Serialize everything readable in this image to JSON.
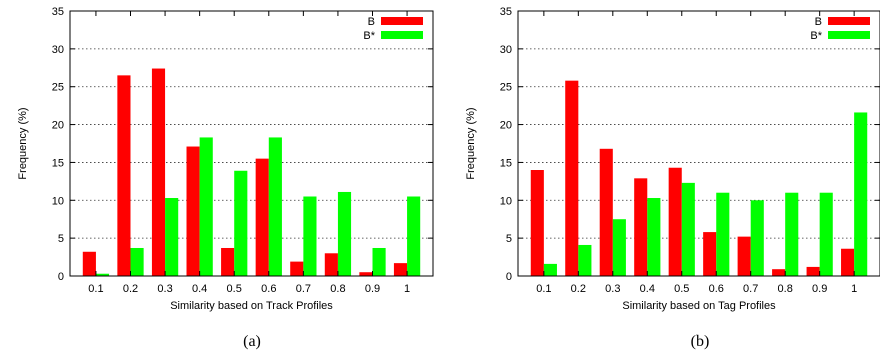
{
  "colors": {
    "B": "#ff0000",
    "B_star": "#00ff00"
  },
  "chart_data": [
    {
      "type": "bar",
      "panel_label": "(a)",
      "xlabel": "Similarity based on Track Profiles",
      "ylabel": "Frequency (%)",
      "ylim": [
        0,
        35
      ],
      "yticks": [
        0,
        5,
        10,
        15,
        20,
        25,
        30,
        35
      ],
      "grid": "horizontal dotted",
      "legend_position": "top-right",
      "categories": [
        "0.1",
        "0.2",
        "0.3",
        "0.4",
        "0.5",
        "0.6",
        "0.7",
        "0.8",
        "0.9",
        "1"
      ],
      "series": [
        {
          "name": "B",
          "color": "#ff0000",
          "values": [
            3.2,
            26.5,
            27.4,
            17.1,
            3.7,
            15.5,
            1.9,
            3.0,
            0.5,
            1.7
          ]
        },
        {
          "name": "B*",
          "color": "#00ff00",
          "values": [
            0.3,
            3.7,
            10.3,
            18.3,
            13.9,
            18.3,
            10.5,
            11.1,
            3.7,
            10.5
          ]
        }
      ]
    },
    {
      "type": "bar",
      "panel_label": "(b)",
      "xlabel": "Similarity based on Tag Profiles",
      "ylabel": "Frequency (%)",
      "ylim": [
        0,
        35
      ],
      "yticks": [
        0,
        5,
        10,
        15,
        20,
        25,
        30,
        35
      ],
      "grid": "horizontal dotted",
      "legend_position": "top-right",
      "categories": [
        "0.1",
        "0.2",
        "0.3",
        "0.4",
        "0.5",
        "0.6",
        "0.7",
        "0.8",
        "0.9",
        "1"
      ],
      "series": [
        {
          "name": "B",
          "color": "#ff0000",
          "values": [
            14.0,
            25.8,
            16.8,
            12.9,
            14.3,
            5.8,
            5.2,
            0.9,
            1.2,
            3.6
          ]
        },
        {
          "name": "B*",
          "color": "#00ff00",
          "values": [
            1.6,
            4.1,
            7.5,
            10.3,
            12.3,
            11.0,
            10.0,
            11.0,
            11.0,
            21.6
          ]
        }
      ]
    }
  ]
}
